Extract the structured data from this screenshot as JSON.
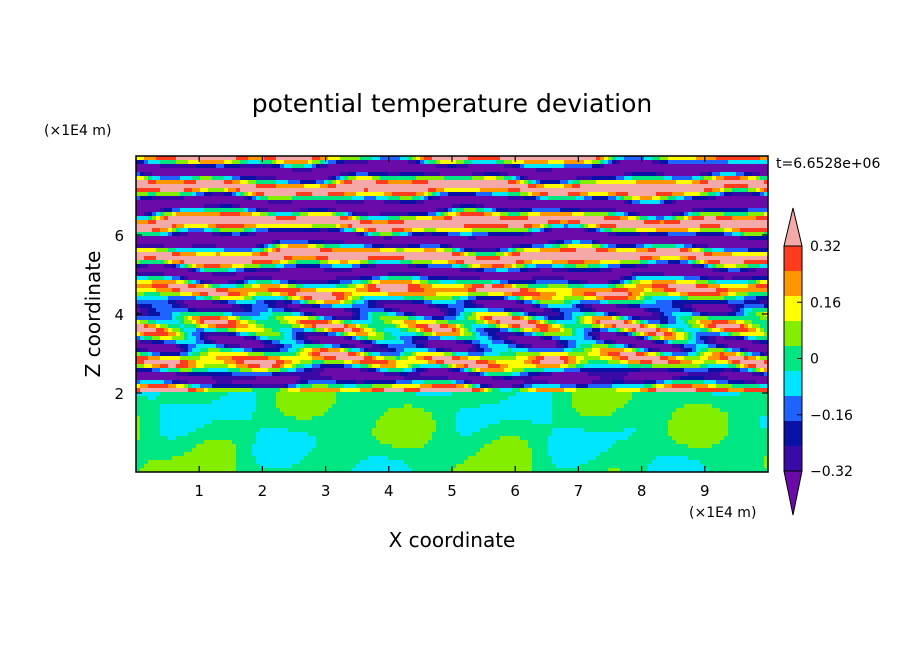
{
  "chart_data": {
    "type": "heatmap",
    "title": "potential temperature deviation",
    "xlabel": "X coordinate",
    "ylabel": "Z coordinate",
    "x_unit": "(×1E4 m)",
    "y_unit": "(×1E4 m)",
    "time_label": "t=6.6528e+06",
    "xlim": [
      0,
      10
    ],
    "ylim": [
      0,
      8
    ],
    "x_ticks": [
      1,
      2,
      3,
      4,
      5,
      6,
      7,
      8,
      9
    ],
    "y_ticks": [
      2,
      4,
      6
    ],
    "colorbar": {
      "levels": [
        -0.4,
        -0.32,
        -0.24,
        -0.16,
        -0.08,
        0,
        0.08,
        0.16,
        0.24,
        0.32,
        0.4
      ],
      "tick_labels": [
        "0.32",
        "0.16",
        "0",
        "−0.16",
        "−0.32"
      ],
      "tick_values": [
        0.32,
        0.16,
        0,
        -0.16,
        -0.32
      ],
      "colors": [
        "#6a0aa8",
        "#3a0aa6",
        "#0a12a6",
        "#1e62ff",
        "#00e6ff",
        "#00e682",
        "#84ee00",
        "#ffff00",
        "#ff9600",
        "#ff3c1e",
        "#f5a8a8"
      ],
      "extend": "both"
    },
    "field_description": {
      "stratified_upper_layer": [
        2,
        8
      ],
      "lower_layer_range": [
        0,
        2
      ]
    }
  }
}
